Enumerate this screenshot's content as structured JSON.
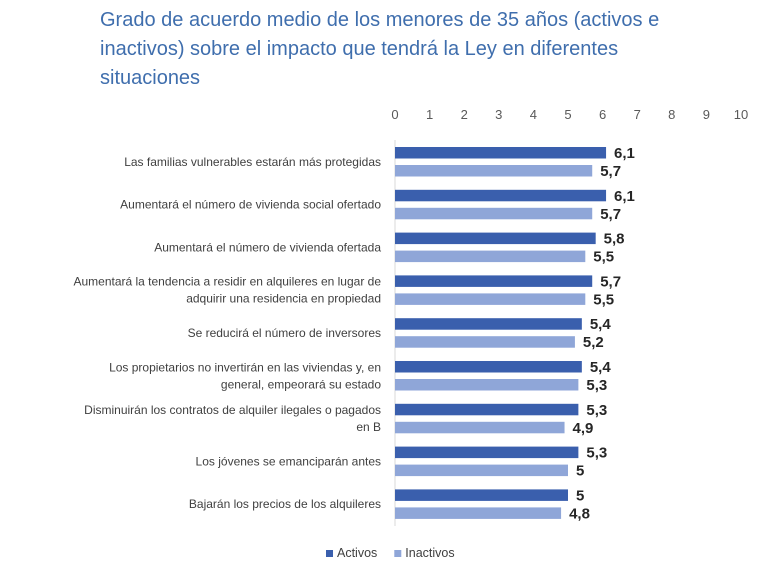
{
  "title_lines": [
    "Grado de acuerdo medio de los menores de 35 años (activos e",
    "inactivos) sobre el impacto que tendrá la Ley en diferentes",
    "situaciones"
  ],
  "colors": {
    "title": "#3f6ead",
    "activos": "#3a5fad",
    "inactivos": "#8fa6d8"
  },
  "chart_data": {
    "type": "bar",
    "orientation": "horizontal",
    "title": "Grado de acuerdo medio de los menores de 35 años (activos e inactivos) sobre el impacto que tendrá la Ley en diferentes situaciones",
    "xlim": [
      0,
      10
    ],
    "x_ticks": [
      0,
      1,
      2,
      3,
      4,
      5,
      6,
      7,
      8,
      9,
      10
    ],
    "x_axis_position": "top",
    "grid": false,
    "legend_position": "bottom",
    "categories": [
      [
        "Las familias vulnerables estarán más protegidas"
      ],
      [
        "Aumentará el número de vivienda social ofertado"
      ],
      [
        "Aumentará el número de vivienda ofertada"
      ],
      [
        "Aumentará la tendencia a residir en alquileres en lugar de",
        "adquirir una residencia en propiedad"
      ],
      [
        "Se reducirá el número de inversores"
      ],
      [
        "Los propietarios no invertirán en las viviendas y, en",
        "general, empeorará su estado"
      ],
      [
        "Disminuirán los contratos de alquiler ilegales o pagados",
        "en B"
      ],
      [
        "Los jóvenes se emanciparán antes"
      ],
      [
        "Bajarán los precios de los alquileres"
      ]
    ],
    "series": [
      {
        "name": "Activos",
        "values": [
          6.1,
          6.1,
          5.8,
          5.7,
          5.4,
          5.4,
          5.3,
          5.3,
          5.0
        ],
        "labels": [
          "6,1",
          "6,1",
          "5,8",
          "5,7",
          "5,4",
          "5,4",
          "5,3",
          "5,3",
          "5"
        ]
      },
      {
        "name": "Inactivos",
        "values": [
          5.7,
          5.7,
          5.5,
          5.5,
          5.2,
          5.3,
          4.9,
          5.0,
          4.8
        ],
        "labels": [
          "5,7",
          "5,7",
          "5,5",
          "5,5",
          "5,2",
          "5,3",
          "4,9",
          "5",
          "4,8"
        ]
      }
    ]
  }
}
